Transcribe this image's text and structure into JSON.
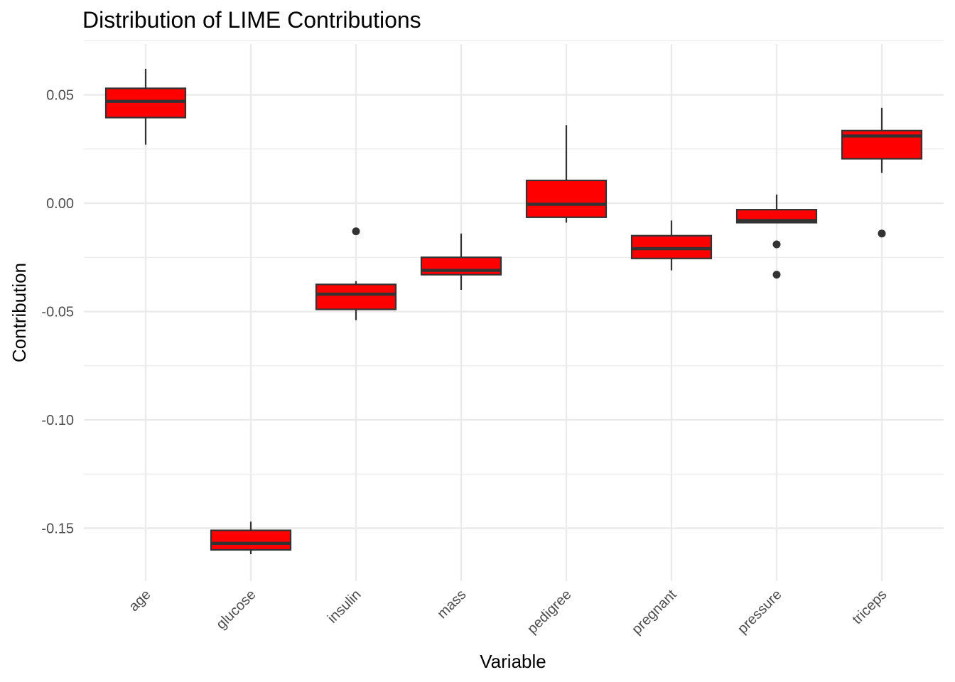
{
  "chart_data": {
    "type": "boxplot",
    "title": "Distribution of LIME Contributions",
    "xlabel": "Variable",
    "ylabel": "Contribution",
    "ylim": [
      -0.175,
      0.073
    ],
    "y_ticks": [
      -0.15,
      -0.1,
      -0.05,
      0.0,
      0.05
    ],
    "y_tick_labels": [
      "-0.15",
      "-0.10",
      "-0.05",
      "0.00",
      "0.05"
    ],
    "grid": true,
    "legend": "none",
    "colors": {
      "box_fill": "#ff0000",
      "box_stroke": "#333333",
      "grid": "#ebebeb",
      "text": "#4d4d4d"
    },
    "categories": [
      "age",
      "glucose",
      "insulin",
      "mass",
      "pedigree",
      "pregnant",
      "pressure",
      "triceps"
    ],
    "boxes": [
      {
        "name": "age",
        "min": 0.027,
        "q1": 0.0395,
        "median": 0.047,
        "q3": 0.053,
        "max": 0.062,
        "outliers": []
      },
      {
        "name": "glucose",
        "min": -0.162,
        "q1": -0.16,
        "median": -0.157,
        "q3": -0.151,
        "max": -0.147,
        "outliers": []
      },
      {
        "name": "insulin",
        "min": -0.054,
        "q1": -0.049,
        "median": -0.042,
        "q3": -0.0375,
        "max": -0.036,
        "outliers": [
          -0.013
        ]
      },
      {
        "name": "mass",
        "min": -0.04,
        "q1": -0.033,
        "median": -0.031,
        "q3": -0.025,
        "max": -0.014,
        "outliers": []
      },
      {
        "name": "pedigree",
        "min": -0.009,
        "q1": -0.0065,
        "median": -0.0005,
        "q3": 0.0105,
        "max": 0.036,
        "outliers": []
      },
      {
        "name": "pregnant",
        "min": -0.031,
        "q1": -0.0255,
        "median": -0.021,
        "q3": -0.015,
        "max": -0.008,
        "outliers": []
      },
      {
        "name": "pressure",
        "min": -0.009,
        "q1": -0.009,
        "median": -0.008,
        "q3": -0.003,
        "max": 0.004,
        "outliers": [
          -0.019,
          -0.033
        ]
      },
      {
        "name": "triceps",
        "min": 0.014,
        "q1": 0.0205,
        "median": 0.031,
        "q3": 0.0335,
        "max": 0.044,
        "outliers": [
          -0.014
        ]
      }
    ]
  }
}
